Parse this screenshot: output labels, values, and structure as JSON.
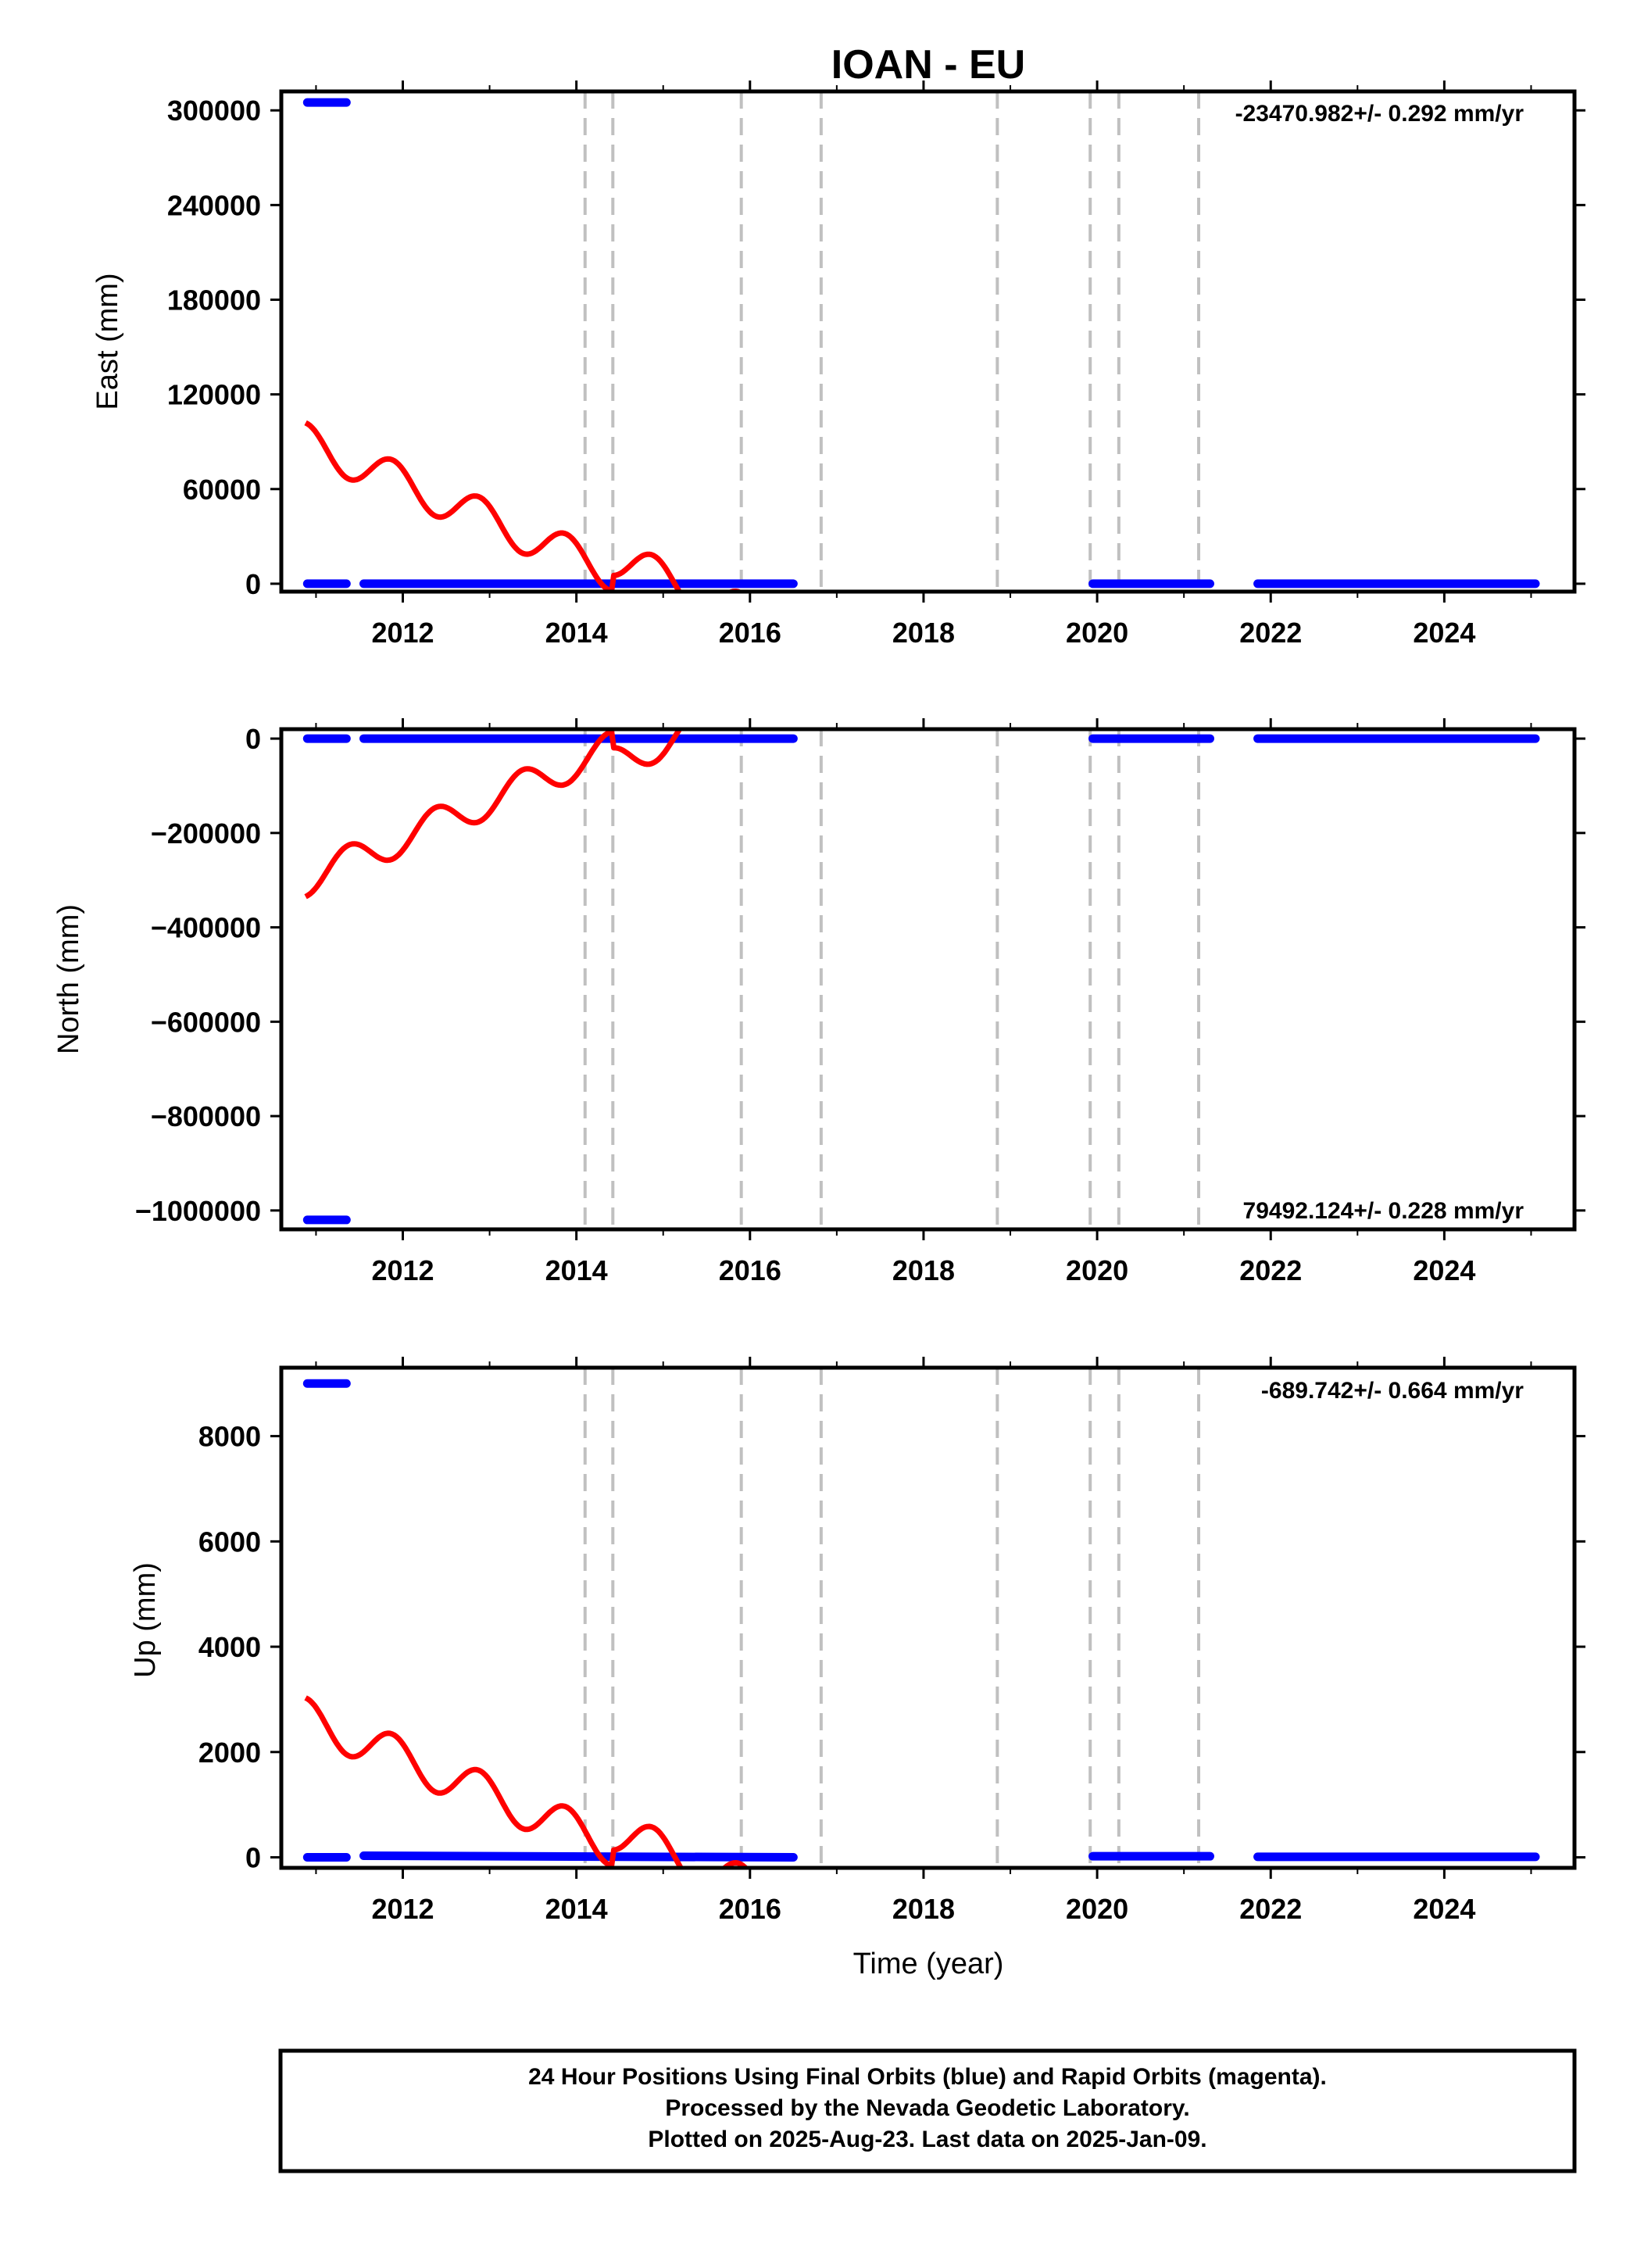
{
  "title": "IOAN - EU",
  "x_axis_label": "Time (year)",
  "colors": {
    "final": "#0000ff",
    "model": "#ff0000",
    "breaks": "#c0c0c0",
    "frame": "#000000"
  },
  "chart_data": [
    {
      "type": "scatter",
      "component": "East",
      "ylabel": "East (mm)",
      "rate_annotation": "-23470.982+/- 0.292 mm/yr",
      "annotation_position": "top-right",
      "xlim": [
        2010.6,
        2025.5
      ],
      "ylim": [
        -5000,
        312000
      ],
      "xticks": [
        2012,
        2014,
        2016,
        2018,
        2020,
        2022,
        2024
      ],
      "xtick_labels": [
        "2012",
        "2014",
        "2016",
        "2018",
        "2020",
        "2022",
        "2024"
      ],
      "yticks": [
        0,
        60000,
        120000,
        180000,
        240000,
        300000
      ],
      "ytick_labels": [
        "0",
        "60000",
        "120000",
        "180000",
        "240000",
        "300000"
      ],
      "breaks": [
        2014.1,
        2014.42,
        2015.9,
        2016.82,
        2018.85,
        2019.92,
        2020.25,
        2021.17
      ],
      "series": [
        {
          "role": "final",
          "segments": [
            {
              "x": [
                2010.9,
                2011.35
              ],
              "y": [
                305000,
                305000
              ]
            },
            {
              "x": [
                2010.9,
                2011.35
              ],
              "y": [
                0,
                0
              ]
            },
            {
              "x": [
                2011.55,
                2016.5
              ],
              "y": [
                0,
                0
              ]
            },
            {
              "x": [
                2019.95,
                2021.3
              ],
              "y": [
                0,
                0
              ]
            },
            {
              "x": [
                2021.85,
                2025.05
              ],
              "y": [
                0,
                0
              ]
            }
          ]
        },
        {
          "role": "model",
          "trend": {
            "t0": 2010.88,
            "v0": 90000,
            "rate": -23470.982
          },
          "seasonal_amplitude": 12000,
          "break_offsets": [
            20000,
            20000,
            0,
            0,
            0,
            0,
            60000
          ],
          "spans": [
            [
              2010.88,
              2016.5
            ],
            [
              2016.82,
              2017.65
            ],
            [
              2017.7,
              2018.05
            ],
            [
              2018.78,
              2019.15
            ],
            [
              2019.25,
              2019.5
            ],
            [
              2019.92,
              2025.05
            ]
          ]
        }
      ]
    },
    {
      "type": "scatter",
      "component": "North",
      "ylabel": "North (mm)",
      "rate_annotation": "79492.124+/- 0.228 mm/yr",
      "annotation_position": "bottom-right",
      "xlim": [
        2010.6,
        2025.5
      ],
      "ylim": [
        -1040000,
        20000
      ],
      "xticks": [
        2012,
        2014,
        2016,
        2018,
        2020,
        2022,
        2024
      ],
      "xtick_labels": [
        "2012",
        "2014",
        "2016",
        "2018",
        "2020",
        "2022",
        "2024"
      ],
      "yticks": [
        0,
        -200000,
        -400000,
        -600000,
        -800000,
        -1000000
      ],
      "ytick_labels": [
        "0",
        "−200000",
        "−400000",
        "−600000",
        "−800000",
        "−1000000"
      ],
      "breaks": [
        2014.1,
        2014.42,
        2015.9,
        2016.82,
        2018.85,
        2019.92,
        2020.25,
        2021.17
      ],
      "series": [
        {
          "role": "final",
          "segments": [
            {
              "x": [
                2010.9,
                2011.35
              ],
              "y": [
                -1020000,
                -1020000
              ]
            },
            {
              "x": [
                2010.9,
                2011.35
              ],
              "y": [
                0,
                0
              ]
            },
            {
              "x": [
                2011.55,
                2016.5
              ],
              "y": [
                0,
                0
              ]
            },
            {
              "x": [
                2019.95,
                2021.3
              ],
              "y": [
                0,
                0
              ]
            },
            {
              "x": [
                2021.85,
                2025.05
              ],
              "y": [
                0,
                0
              ]
            }
          ]
        },
        {
          "role": "model",
          "trend": {
            "t0": 2010.88,
            "v0": -300000,
            "rate": 79492.124
          },
          "seasonal_amplitude": -35000,
          "break_offsets": [
            -70000,
            -70000,
            -60000,
            -60000,
            0,
            -60000,
            -180000
          ],
          "spans": [
            [
              2010.88,
              2016.5
            ],
            [
              2016.82,
              2017.65
            ],
            [
              2017.7,
              2018.05
            ],
            [
              2018.78,
              2019.15
            ],
            [
              2019.25,
              2019.5
            ],
            [
              2019.92,
              2025.05
            ]
          ]
        }
      ]
    },
    {
      "type": "scatter",
      "component": "Up",
      "ylabel": "Up (mm)",
      "rate_annotation": "-689.742+/- 0.664 mm/yr",
      "annotation_position": "top-right",
      "xlim": [
        2010.6,
        2025.5
      ],
      "ylim": [
        -200,
        9300
      ],
      "xticks": [
        2012,
        2014,
        2016,
        2018,
        2020,
        2022,
        2024
      ],
      "xtick_labels": [
        "2012",
        "2014",
        "2016",
        "2018",
        "2020",
        "2022",
        "2024"
      ],
      "yticks": [
        0,
        2000,
        4000,
        6000,
        8000
      ],
      "ytick_labels": [
        "0",
        "2000",
        "4000",
        "6000",
        "8000"
      ],
      "breaks": [
        2014.1,
        2014.42,
        2015.9,
        2016.82,
        2018.85,
        2019.92,
        2020.25,
        2021.17
      ],
      "series": [
        {
          "role": "final",
          "segments": [
            {
              "x": [
                2010.9,
                2011.35
              ],
              "y": [
                9000,
                9000
              ]
            },
            {
              "x": [
                2010.9,
                2011.35
              ],
              "y": [
                0,
                0
              ]
            },
            {
              "x": [
                2011.55,
                2016.5
              ],
              "y": [
                30,
                0
              ]
            },
            {
              "x": [
                2019.95,
                2021.3
              ],
              "y": [
                20,
                20
              ]
            },
            {
              "x": [
                2021.85,
                2025.05
              ],
              "y": [
                10,
                10
              ]
            }
          ]
        },
        {
          "role": "model",
          "trend": {
            "t0": 2010.88,
            "v0": 2650,
            "rate": -689.742
          },
          "seasonal_amplitude": 380,
          "break_offsets": [
            600,
            600,
            400,
            400,
            800,
            900,
            1750
          ],
          "spans": [
            [
              2010.88,
              2016.5
            ],
            [
              2016.82,
              2017.65
            ],
            [
              2017.7,
              2018.05
            ],
            [
              2018.78,
              2019.15
            ],
            [
              2019.92,
              2025.05
            ]
          ]
        }
      ]
    }
  ],
  "footer": {
    "line1": "24 Hour Positions Using Final Orbits (blue) and Rapid Orbits (magenta).",
    "line2": "Processed by the Nevada Geodetic Laboratory.",
    "line3": "Plotted on 2025-Aug-23. Last data on 2025-Jan-09."
  }
}
